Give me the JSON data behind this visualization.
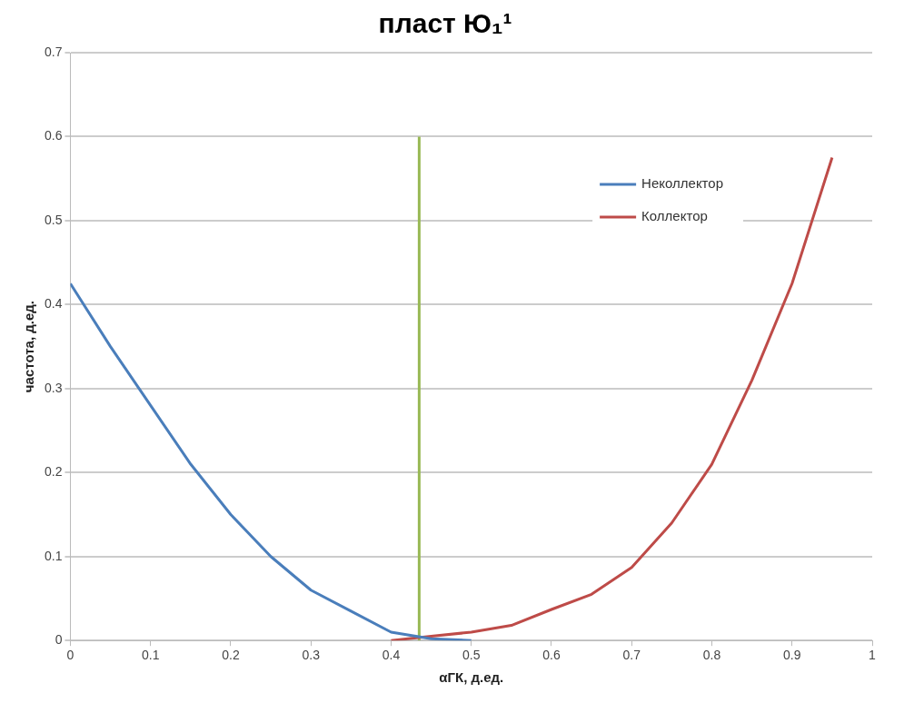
{
  "chart_data": {
    "type": "line",
    "title": "пласт Ю₁¹",
    "xlabel": "αГК, д.ед.",
    "ylabel": "частота, д.ед.",
    "xlim": [
      0,
      1
    ],
    "xticks": [
      0,
      0.1,
      0.2,
      0.3,
      0.4,
      0.5,
      0.6,
      0.7,
      0.8,
      0.9,
      1
    ],
    "ylim": [
      0,
      0.7
    ],
    "yticks": [
      0,
      0.1,
      0.2,
      0.3,
      0.4,
      0.5,
      0.6,
      0.7
    ],
    "grid": "y",
    "legend": "top right",
    "marker": "none",
    "line_style": "solid",
    "series": [
      {
        "name": "Неколлектор",
        "color": "#4a7ebb",
        "x": [
          0,
          0.05,
          0.1,
          0.15,
          0.2,
          0.25,
          0.3,
          0.35,
          0.4,
          0.45,
          0.5
        ],
        "values": [
          0.425,
          0.35,
          0.28,
          0.21,
          0.15,
          0.1,
          0.06,
          0.035,
          0.01,
          0.002,
          0.0
        ]
      },
      {
        "name": "Коллектор",
        "color": "#be4b48",
        "x": [
          0.4,
          0.45,
          0.5,
          0.55,
          0.6,
          0.65,
          0.7,
          0.75,
          0.8,
          0.85,
          0.9,
          0.95
        ],
        "values": [
          0.0,
          0.005,
          0.01,
          0.018,
          0.037,
          0.055,
          0.087,
          0.14,
          0.21,
          0.31,
          0.425,
          0.575
        ]
      },
      {
        "type": "line",
        "color": "#98b954",
        "x": [
          0.435,
          0.435
        ],
        "values": [
          0,
          0.6
        ]
      }
    ]
  }
}
